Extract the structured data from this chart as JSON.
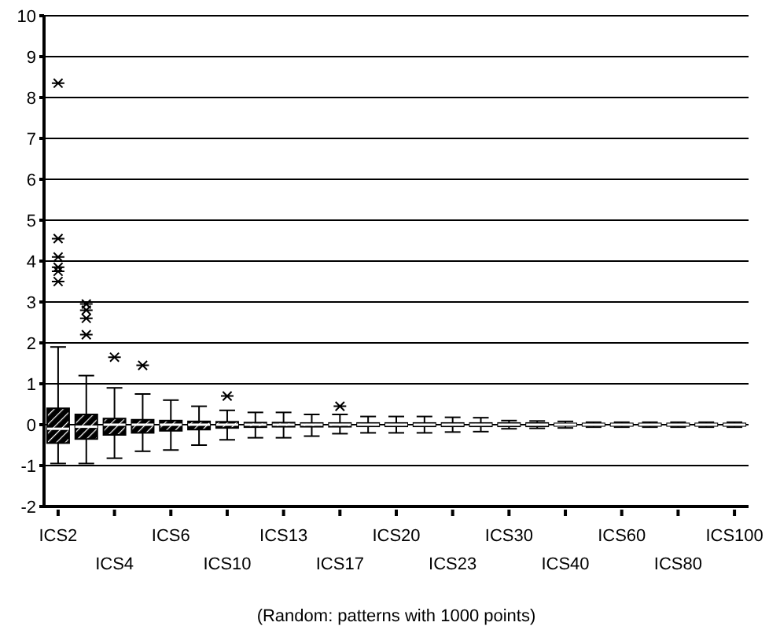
{
  "chart_data": {
    "type": "box",
    "xlabel": "(Random: patterns with 1000 points)",
    "categories": [
      "ICS2",
      null,
      "ICS4",
      null,
      "ICS6",
      null,
      "ICS10",
      null,
      "ICS13",
      null,
      "ICS17",
      null,
      "ICS20",
      null,
      "ICS23",
      null,
      "ICS30",
      null,
      "ICS40",
      null,
      "ICS60",
      null,
      "ICS80",
      null,
      "ICS100"
    ],
    "color": "#000000",
    "boxes": [
      {
        "low": -0.95,
        "q1": -0.45,
        "median": -0.1,
        "q3": 0.4,
        "high": 1.9,
        "outliers": [
          8.35,
          4.55,
          4.1,
          3.85,
          3.75,
          3.5
        ]
      },
      {
        "low": -0.95,
        "q1": -0.35,
        "median": -0.05,
        "q3": 0.25,
        "high": 1.2,
        "outliers": [
          2.95,
          2.8,
          2.6,
          2.2
        ]
      },
      {
        "low": -0.82,
        "q1": -0.25,
        "median": 0,
        "q3": 0.15,
        "high": 0.9,
        "outliers": [
          1.65
        ]
      },
      {
        "low": -0.65,
        "q1": -0.2,
        "median": 0,
        "q3": 0.12,
        "high": 0.75,
        "outliers": [
          1.45
        ]
      },
      {
        "low": -0.62,
        "q1": -0.15,
        "median": 0,
        "q3": 0.1,
        "high": 0.6
      },
      {
        "low": -0.5,
        "q1": -0.12,
        "median": 0,
        "q3": 0.08,
        "high": 0.45
      },
      {
        "low": -0.37,
        "q1": -0.08,
        "median": 0,
        "q3": 0.07,
        "high": 0.35,
        "outliers": [
          0.7
        ]
      },
      {
        "low": -0.32,
        "q1": -0.06,
        "median": 0,
        "q3": 0.05,
        "high": 0.3
      },
      {
        "low": -0.32,
        "q1": -0.05,
        "median": 0,
        "q3": 0.05,
        "high": 0.3
      },
      {
        "low": -0.28,
        "q1": -0.05,
        "median": 0,
        "q3": 0.04,
        "high": 0.25
      },
      {
        "low": -0.22,
        "q1": -0.05,
        "median": 0,
        "q3": 0.04,
        "high": 0.25,
        "outliers": [
          0.45
        ]
      },
      {
        "low": -0.2,
        "q1": -0.04,
        "median": 0,
        "q3": 0.04,
        "high": 0.2
      },
      {
        "low": -0.2,
        "q1": -0.04,
        "median": 0,
        "q3": 0.04,
        "high": 0.2
      },
      {
        "low": -0.2,
        "q1": -0.04,
        "median": 0,
        "q3": 0.04,
        "high": 0.2
      },
      {
        "low": -0.18,
        "q1": -0.04,
        "median": 0,
        "q3": 0.04,
        "high": 0.18
      },
      {
        "low": -0.17,
        "q1": -0.04,
        "median": 0,
        "q3": 0.04,
        "high": 0.17
      },
      {
        "low": -0.1,
        "q1": -0.04,
        "median": 0,
        "q3": 0.04,
        "high": 0.1
      },
      {
        "low": -0.09,
        "q1": -0.04,
        "median": 0,
        "q3": 0.04,
        "high": 0.09
      },
      {
        "low": -0.08,
        "q1": -0.03,
        "median": 0,
        "q3": 0.03,
        "high": 0.08
      },
      {
        "low": -0.06,
        "q1": -0.03,
        "median": 0,
        "q3": 0.03,
        "high": 0.06
      },
      {
        "low": -0.06,
        "q1": -0.03,
        "median": 0,
        "q3": 0.03,
        "high": 0.06
      },
      {
        "low": -0.06,
        "q1": -0.03,
        "median": 0,
        "q3": 0.03,
        "high": 0.06
      },
      {
        "low": -0.06,
        "q1": -0.03,
        "median": 0,
        "q3": 0.03,
        "high": 0.06
      },
      {
        "low": -0.06,
        "q1": -0.03,
        "median": 0,
        "q3": 0.03,
        "high": 0.06
      },
      {
        "low": -0.06,
        "q1": -0.03,
        "median": 0,
        "q3": 0.03,
        "high": 0.06
      }
    ],
    "ylim": [
      -2,
      10
    ],
    "yticks": [
      -2,
      -1,
      0,
      1,
      2,
      3,
      4,
      5,
      6,
      7,
      8,
      9,
      10
    ],
    "grid": "y",
    "marker": "star"
  }
}
